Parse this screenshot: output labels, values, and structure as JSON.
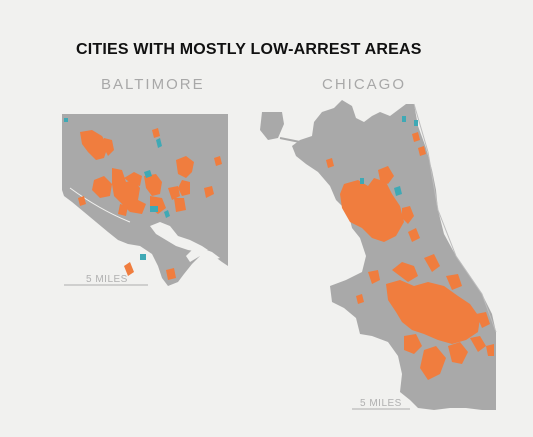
{
  "title": "CITIES WITH MOSTLY LOW-ARREST AREAS",
  "cities": [
    {
      "name": "BALTIMORE",
      "scale_label": "5 MILES"
    },
    {
      "name": "CHICAGO",
      "scale_label": "5 MILES"
    }
  ],
  "colors": {
    "background": "#f1f1ef",
    "city_fill": "#a9a9a9",
    "low_arrest_area": "#f07d3e",
    "secondary_area": "#3fa9b5",
    "scale_bar": "#c4c4c4"
  }
}
